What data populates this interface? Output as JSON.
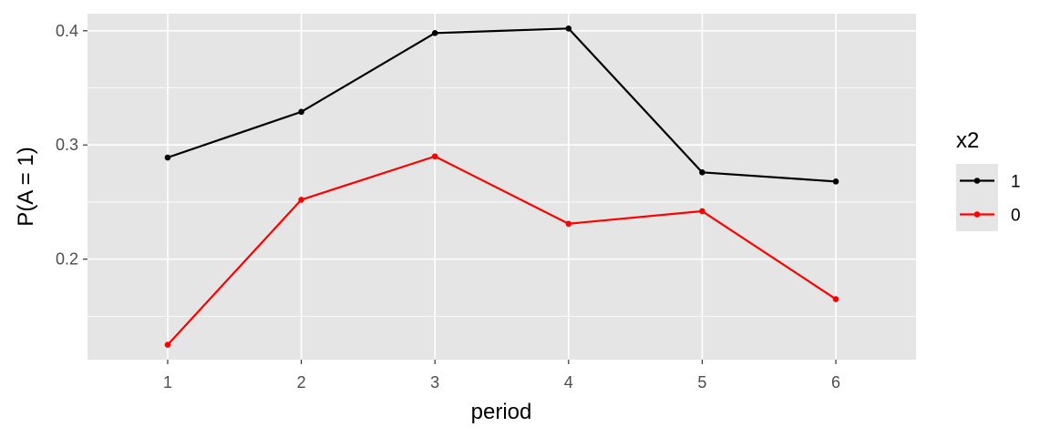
{
  "chart_data": {
    "type": "line",
    "title": "",
    "xlabel": "period",
    "ylabel": "P(A = 1)",
    "x": [
      1,
      2,
      3,
      4,
      5,
      6
    ],
    "x_tick_labels": [
      "1",
      "2",
      "3",
      "4",
      "5",
      "6"
    ],
    "xlim": [
      0.4,
      6.6
    ],
    "ylim": [
      0.112,
      0.415
    ],
    "y_ticks": [
      0.2,
      0.3,
      0.4
    ],
    "y_tick_labels": [
      "0.2",
      "0.3",
      "0.4"
    ],
    "grid": true,
    "legend": {
      "title": "x2",
      "position": "right"
    },
    "series": [
      {
        "name": "1",
        "color": "#000000",
        "values": [
          0.289,
          0.329,
          0.398,
          0.402,
          0.276,
          0.268
        ]
      },
      {
        "name": "0",
        "color": "#ff0000",
        "values": [
          0.125,
          0.252,
          0.29,
          0.231,
          0.242,
          0.165
        ]
      }
    ],
    "panel_background": "#e5e5e5",
    "gridline_color": "#ffffff"
  }
}
